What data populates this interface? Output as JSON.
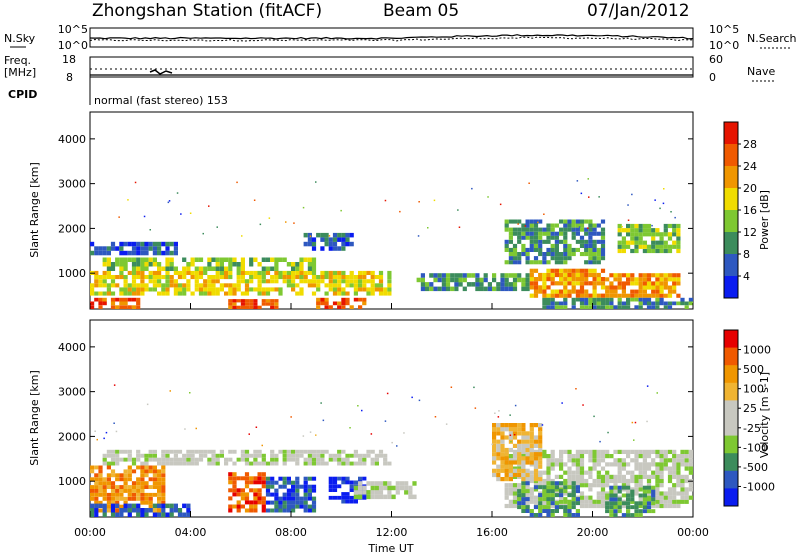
{
  "header": {
    "station": "Zhongshan Station (fitACF)",
    "beam": "Beam 05",
    "date": "07/Jan/2012"
  },
  "noise_panel": {
    "left_label": "N.Sky",
    "right_label": "N.Search",
    "ticks_left": [
      "10^5",
      "10^0"
    ],
    "ticks_right": [
      "10^5",
      "10^0"
    ]
  },
  "freq_panel": {
    "left_label_1": "Freq.",
    "left_label_2": "[MHz]",
    "ticks_left": [
      "18",
      "8"
    ],
    "right_label": "Nave",
    "ticks_right": [
      "60",
      "0"
    ]
  },
  "cpid": {
    "label": "CPID",
    "mode_text": "normal (fast stereo) 153"
  },
  "colors": {
    "power": [
      "#0a1cf0",
      "#2e58c0",
      "#3c8c5c",
      "#7ec832",
      "#f0dc00",
      "#f09600",
      "#f05a00",
      "#e61400"
    ],
    "velocity": [
      "#e60000",
      "#f05a00",
      "#f09600",
      "#f0b432",
      "#c8c8c0",
      "#c8c8c0",
      "#7ec832",
      "#3c8c5c",
      "#2e58c0",
      "#0a1cf0"
    ]
  },
  "chart_data": [
    {
      "type": "heatmap",
      "ylabel": "Slant Range [km]",
      "xlabel": "",
      "y_ticks": [
        "1000",
        "2000",
        "3000",
        "4000"
      ],
      "ylim": [
        200,
        4600
      ],
      "colorbar": {
        "label": "Power [dB]",
        "ticks": [
          "4",
          "8",
          "12",
          "16",
          "20",
          "24",
          "28"
        ],
        "range": [
          0,
          32
        ]
      },
      "regions": [
        {
          "t0": 0.0,
          "t1": 2.0,
          "r0": 200,
          "r1": 450,
          "level": 26
        },
        {
          "t0": 0.0,
          "t1": 12.0,
          "r0": 500,
          "r1": 1050,
          "level": 18
        },
        {
          "t0": 0.5,
          "t1": 9.0,
          "r0": 1050,
          "r1": 1350,
          "level": 12
        },
        {
          "t0": 0.0,
          "t1": 3.5,
          "r0": 1400,
          "r1": 1700,
          "level": 7
        },
        {
          "t0": 5.5,
          "t1": 7.5,
          "r0": 200,
          "r1": 420,
          "level": 25
        },
        {
          "t0": 9.0,
          "t1": 11.0,
          "r0": 200,
          "r1": 450,
          "level": 27
        },
        {
          "t0": 8.5,
          "t1": 10.5,
          "r0": 1500,
          "r1": 1900,
          "level": 7
        },
        {
          "t0": 13.0,
          "t1": 17.5,
          "r0": 600,
          "r1": 1000,
          "level": 10
        },
        {
          "t0": 16.5,
          "t1": 20.5,
          "r0": 1200,
          "r1": 2200,
          "level": 8
        },
        {
          "t0": 17.5,
          "t1": 20.5,
          "r0": 450,
          "r1": 1100,
          "level": 22
        },
        {
          "t0": 20.5,
          "t1": 23.5,
          "r0": 450,
          "r1": 1000,
          "level": 20
        },
        {
          "t0": 21.0,
          "t1": 23.5,
          "r0": 1450,
          "r1": 2100,
          "level": 14
        },
        {
          "t0": 18.0,
          "t1": 24.0,
          "r0": 200,
          "r1": 450,
          "level": 10
        }
      ]
    },
    {
      "type": "heatmap",
      "ylabel": "Slant Range [km]",
      "xlabel": "Time UT",
      "x_ticks": [
        "00:00",
        "04:00",
        "08:00",
        "12:00",
        "16:00",
        "20:00",
        "00:00"
      ],
      "y_ticks": [
        "1000",
        "2000",
        "3000",
        "4000"
      ],
      "ylim": [
        200,
        4600
      ],
      "xlim": [
        0,
        24
      ],
      "colorbar": {
        "label": "Velocity [m s-1]",
        "ticks": [
          "-1000",
          "-500",
          "-100",
          "-25",
          "25",
          "100",
          "500",
          "1000"
        ],
        "range": [
          -1000,
          1000
        ]
      },
      "regions": [
        {
          "t0": 0.0,
          "t1": 3.0,
          "r0": 300,
          "r1": 1350,
          "level": 2
        },
        {
          "t0": 0.5,
          "t1": 12.0,
          "r0": 1350,
          "r1": 1700,
          "level": 5
        },
        {
          "t0": 0.0,
          "t1": 4.0,
          "r0": 200,
          "r1": 500,
          "level": 8
        },
        {
          "t0": 5.5,
          "t1": 7.0,
          "r0": 300,
          "r1": 1200,
          "level": 1
        },
        {
          "t0": 7.0,
          "t1": 9.0,
          "r0": 300,
          "r1": 1100,
          "level": 8
        },
        {
          "t0": 9.5,
          "t1": 11.0,
          "r0": 500,
          "r1": 1100,
          "level": 9
        },
        {
          "t0": 10.5,
          "t1": 13.0,
          "r0": 600,
          "r1": 1000,
          "level": 5
        },
        {
          "t0": 16.5,
          "t1": 24.0,
          "r0": 400,
          "r1": 1700,
          "level": 5
        },
        {
          "t0": 17.0,
          "t1": 19.5,
          "r0": 200,
          "r1": 1000,
          "level": 7
        },
        {
          "t0": 16.0,
          "t1": 18.0,
          "r0": 1000,
          "r1": 2300,
          "level": 3
        },
        {
          "t0": 20.5,
          "t1": 22.5,
          "r0": 200,
          "r1": 900,
          "level": 7
        }
      ]
    }
  ]
}
